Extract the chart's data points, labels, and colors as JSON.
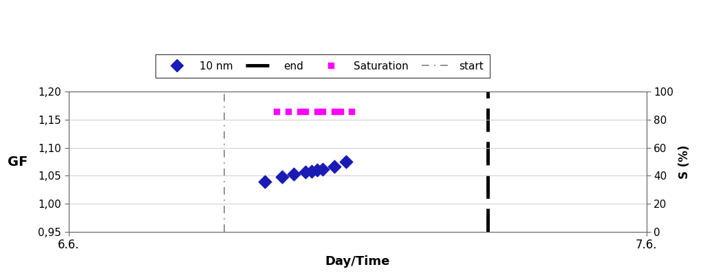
{
  "x_start_line": 0.27,
  "x_end_line": 0.725,
  "gf_10nm_x": [
    0.34,
    0.37,
    0.39,
    0.41,
    0.42,
    0.43,
    0.44,
    0.46,
    0.48
  ],
  "gf_10nm_y": [
    1.04,
    1.048,
    1.053,
    1.057,
    1.058,
    1.06,
    1.062,
    1.066,
    1.075
  ],
  "sat_x": [
    0.36,
    0.38,
    0.4,
    0.41,
    0.43,
    0.44,
    0.46,
    0.47,
    0.49
  ],
  "sat_y": [
    1.165,
    1.165,
    1.165,
    1.165,
    1.165,
    1.165,
    1.165,
    1.165,
    1.165
  ],
  "xlim": [
    0.0,
    1.0
  ],
  "ylim_left": [
    0.95,
    1.2
  ],
  "ylim_right": [
    0,
    100
  ],
  "xlabel": "Day/Time",
  "ylabel_left": "GF",
  "ylabel_right": "S (%)",
  "xtick_labels": [
    "6.6.",
    "7.6."
  ],
  "xtick_positions": [
    0.0,
    1.0
  ],
  "yticks_left": [
    0.95,
    1.0,
    1.05,
    1.1,
    1.15,
    1.2
  ],
  "ytick_labels_left": [
    "0,95",
    "1,00",
    "1,05",
    "1,10",
    "1,15",
    "1,20"
  ],
  "yticks_right": [
    0,
    20,
    40,
    60,
    80,
    100
  ],
  "color_10nm": "#1a1ab5",
  "color_saturation": "#ff00ff",
  "color_start_line": "#888888",
  "color_end_line": "#000000",
  "background_color": "#ffffff"
}
